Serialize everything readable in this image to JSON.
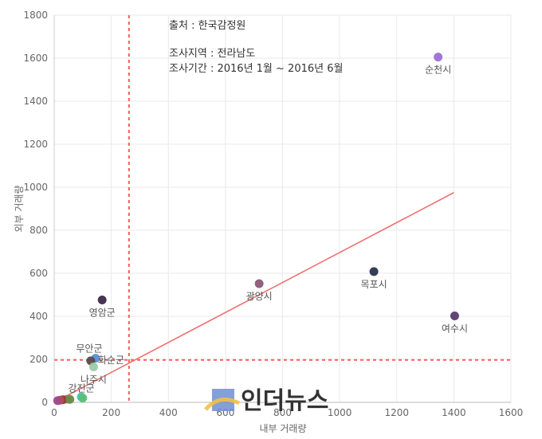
{
  "chart_data": {
    "type": "scatter",
    "xlabel": "내부 거래량",
    "ylabel": "외부 거래량",
    "xlim": [
      0,
      1600
    ],
    "ylim": [
      0,
      1800
    ],
    "x_ticks": [
      "0",
      "200",
      "400",
      "600",
      "800",
      "1000",
      "1200",
      "1400",
      "1600"
    ],
    "y_ticks": [
      "0",
      "200",
      "400",
      "600",
      "800",
      "1000",
      "1200",
      "1400",
      "1600",
      "1800"
    ],
    "grid": true,
    "annotations": [
      "출처 : 한국감정원",
      "조사지역 : 전라남도",
      "조사기간 : 2016년 1월 ~ 2016년 6월"
    ],
    "reference_lines": {
      "x": 262,
      "y": 197,
      "color": "#ff5a5a"
    },
    "trendline": {
      "from": [
        0,
        0
      ],
      "to": [
        1400,
        975
      ],
      "color": "#f07070"
    },
    "points": [
      {
        "label": "순천시",
        "x": 1345,
        "y": 1605,
        "color": "#9b6fd9",
        "label_pos": "below"
      },
      {
        "label": "목포시",
        "x": 1120,
        "y": 608,
        "color": "#2a3550",
        "label_pos": "below"
      },
      {
        "label": "광양시",
        "x": 718,
        "y": 552,
        "color": "#8a5a78",
        "label_pos": "below"
      },
      {
        "label": "여수시",
        "x": 1403,
        "y": 402,
        "color": "#5a3c6e",
        "label_pos": "below"
      },
      {
        "label": "영암군",
        "x": 168,
        "y": 476,
        "color": "#3d2a4a",
        "label_pos": "below"
      },
      {
        "label": "무안군",
        "x": 145,
        "y": 205,
        "color": "#5a8fd4",
        "label_pos": "above-left"
      },
      {
        "label": "화순군",
        "x": 128,
        "y": 193,
        "color": "#5a4a4a",
        "label_pos": "right"
      },
      {
        "label": "나주시",
        "x": 138,
        "y": 165,
        "color": "#9fc9a8",
        "label_pos": "below"
      },
      {
        "label": "강진군",
        "x": 95,
        "y": 25,
        "color": "#3fc4b0",
        "label_pos": "above"
      },
      {
        "label": "",
        "x": 100,
        "y": 20,
        "color": "#5bbf7a",
        "label_pos": "none"
      },
      {
        "label": "",
        "x": 45,
        "y": 15,
        "color": "#9c8a5a",
        "label_pos": "none"
      },
      {
        "label": "",
        "x": 30,
        "y": 12,
        "color": "#8a3a3a",
        "label_pos": "none"
      },
      {
        "label": "",
        "x": 20,
        "y": 10,
        "color": "#c04a4a",
        "label_pos": "none"
      },
      {
        "label": "",
        "x": 55,
        "y": 14,
        "color": "#6a8a4a",
        "label_pos": "none"
      },
      {
        "label": "",
        "x": 12,
        "y": 8,
        "color": "#a04a8a",
        "label_pos": "none"
      }
    ]
  },
  "watermark": {
    "text": "인더뉴스"
  }
}
